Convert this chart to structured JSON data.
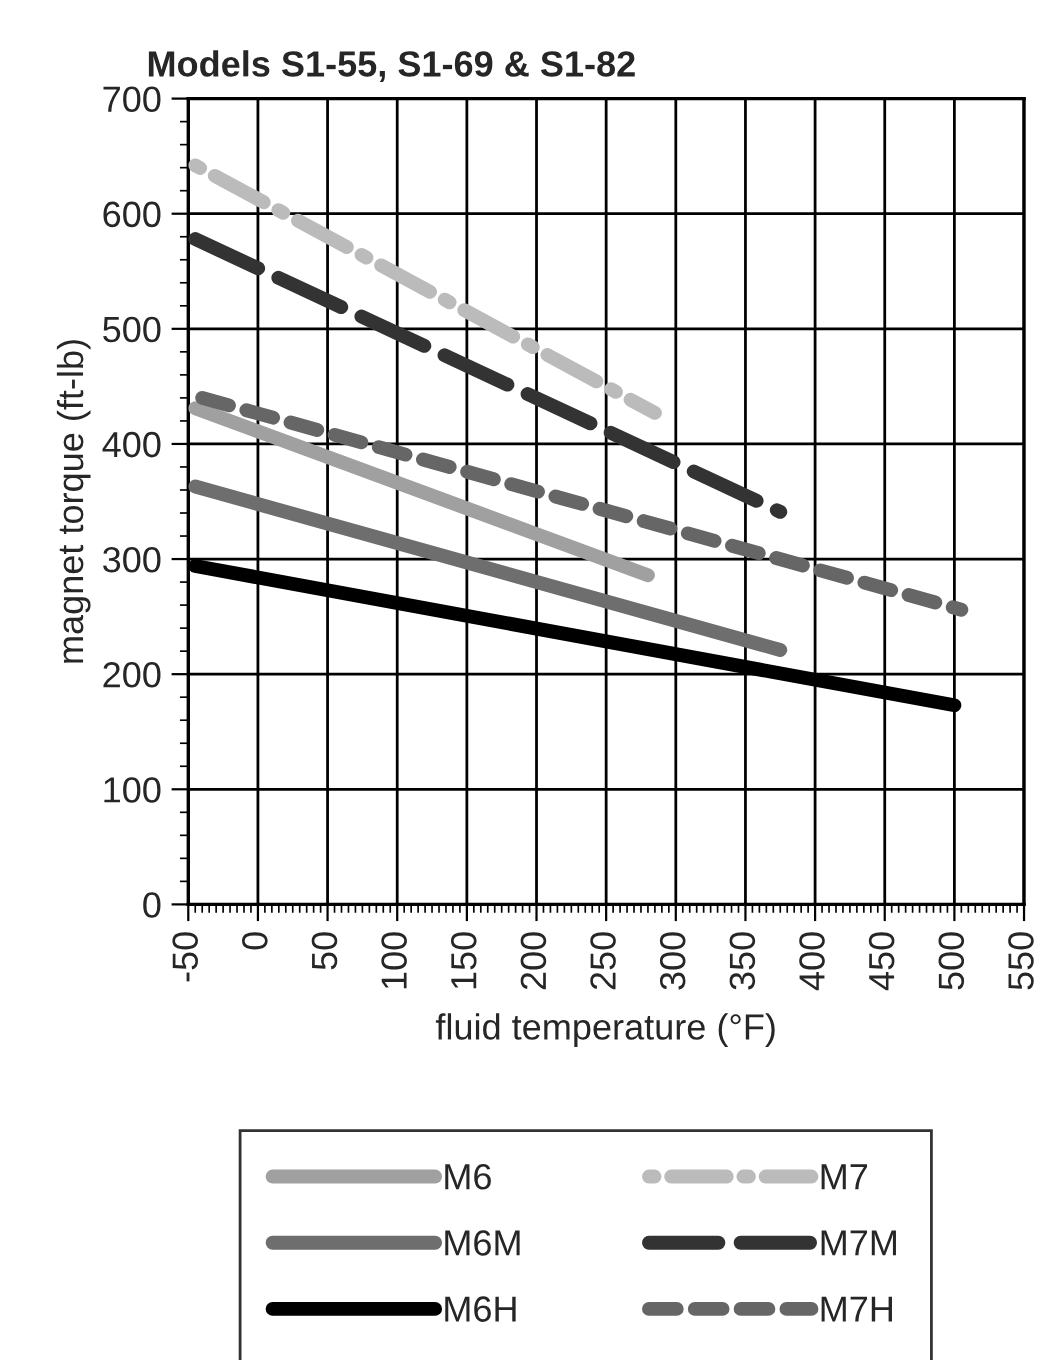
{
  "chart_data": {
    "type": "line",
    "title": "Models S1-55, S1-69 & S1-82",
    "xlabel": "fluid temperature (°F)",
    "ylabel": "magnet torque (ft-lb)",
    "xlim": [
      -50,
      550
    ],
    "xticks": [
      -50,
      0,
      50,
      100,
      150,
      200,
      250,
      300,
      350,
      400,
      450,
      500,
      550
    ],
    "ylim": [
      0,
      700
    ],
    "yticks": [
      0,
      100,
      200,
      300,
      400,
      500,
      600,
      700
    ],
    "grid": true,
    "legend": "bottom",
    "marker": "none",
    "series": [
      {
        "name": "M6",
        "color": "#a0a0a0",
        "line_style": "solid",
        "x": [
          -45,
          280
        ],
        "values": [
          431,
          286
        ]
      },
      {
        "name": "M7",
        "color": "#bbbbbb",
        "line_style": "dashdot",
        "x": [
          -45,
          285
        ],
        "values": [
          642,
          427
        ]
      },
      {
        "name": "M6M",
        "color": "#6e6e6e",
        "line_style": "solid",
        "x": [
          -45,
          375
        ],
        "values": [
          363,
          221
        ]
      },
      {
        "name": "M7M",
        "color": "#333333",
        "line_style": "dashed",
        "x": [
          -45,
          375
        ],
        "values": [
          578,
          341
        ]
      },
      {
        "name": "M6H",
        "color": "#000000",
        "line_style": "solid",
        "x": [
          -45,
          500
        ],
        "values": [
          294,
          173
        ]
      },
      {
        "name": "M7H",
        "color": "#666666",
        "line_style": "dotted",
        "x": [
          -40,
          505
        ],
        "values": [
          440,
          256
        ]
      }
    ]
  }
}
